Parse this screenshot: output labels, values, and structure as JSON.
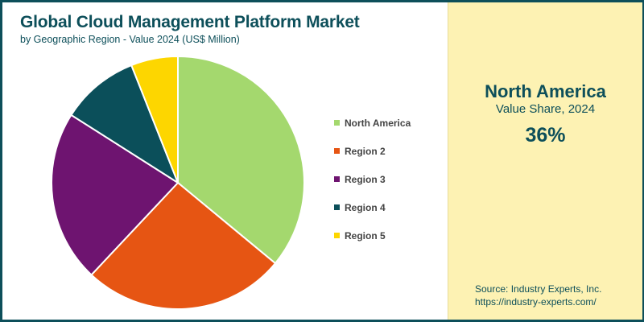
{
  "header": {
    "title": "Global Cloud Management Platform Market",
    "subtitle": "by Geographic Region - Value 2024 (US$ Million)"
  },
  "highlight": {
    "region": "North America",
    "label": "Value Share, 2024",
    "value": "36%"
  },
  "source": {
    "line1": "Source: Industry Experts, Inc.",
    "line2": "https://industry-experts.com/"
  },
  "colors": {
    "frame": "#0d4f5a",
    "panel": "#fdf2b3"
  },
  "chart_data": {
    "type": "pie",
    "title": "Global Cloud Management Platform Market",
    "subtitle": "by Geographic Region - Value 2024 (US$ Million)",
    "legend_position": "right",
    "categories": [
      "North America",
      "Region 2",
      "Region 3",
      "Region 4",
      "Region 5"
    ],
    "values": [
      36,
      26,
      22,
      10,
      6
    ],
    "unit": "% share",
    "colors": [
      "#a4d86e",
      "#e65513",
      "#6e1470",
      "#0b4f5a",
      "#fdd600"
    ]
  }
}
